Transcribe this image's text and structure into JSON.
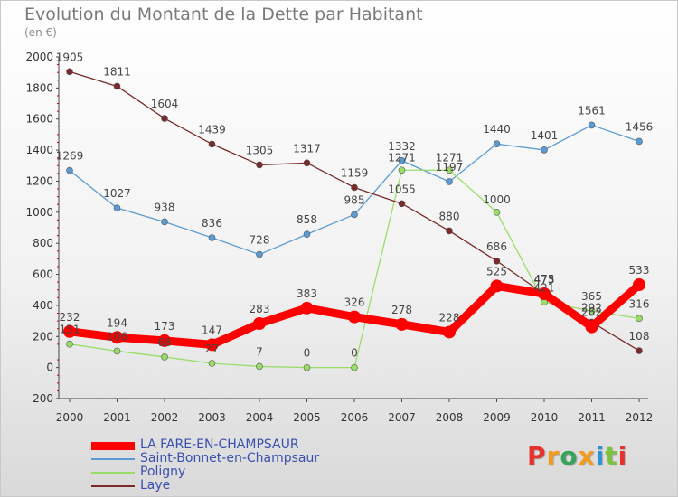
{
  "title": "Evolution du Montant de la Dette par Habitant",
  "unit": "(en €)",
  "logo": {
    "text": "Proxiti",
    "colors": [
      "#e8312f",
      "#f39b1d",
      "#3aa35a",
      "#f39b1d",
      "#2d8fd5",
      "#7cc240",
      "#e8312f"
    ]
  },
  "chart_data": {
    "type": "line",
    "title": "Evolution du Montant de la Dette par Habitant",
    "ylabel": "(en €)",
    "x": [
      "2000",
      "2001",
      "2002",
      "2003",
      "2004",
      "2005",
      "2006",
      "2007",
      "2008",
      "2009",
      "2010",
      "2011",
      "2012"
    ],
    "ylim": [
      -200,
      2000
    ],
    "yticks": [
      -200,
      0,
      200,
      400,
      600,
      800,
      1000,
      1200,
      1400,
      1600,
      1800,
      2000
    ],
    "grid": false,
    "legend": "bottom-left",
    "series": [
      {
        "name": "LA FARE-EN-CHAMPSAUR",
        "color": "#ff0000",
        "width": 9,
        "values": [
          232,
          194,
          173,
          147,
          283,
          383,
          326,
          278,
          228,
          525,
          475,
          262,
          533
        ],
        "labels": [
          "232",
          "194",
          "173",
          "147",
          "283",
          "383",
          "326",
          "278",
          "228",
          "525",
          "475",
          "262",
          "533"
        ]
      },
      {
        "name": "Saint-Bonnet-en-Champsaur",
        "color": "#5b9bd5",
        "width": 1.3,
        "values": [
          1269,
          1027,
          938,
          836,
          728,
          858,
          985,
          1332,
          1197,
          1440,
          1401,
          1561,
          1456
        ],
        "labels": [
          "1269",
          "1027",
          "938",
          "836",
          "728",
          "858",
          "985",
          "1332",
          "1197",
          "1440",
          "1401",
          "1561",
          "1456"
        ]
      },
      {
        "name": "Poligny",
        "color": "#99dd66",
        "width": 1.3,
        "values": [
          151,
          106,
          68,
          27,
          7,
          0,
          0,
          1271,
          1271,
          1000,
          421,
          365,
          316
        ],
        "labels": [
          "151",
          "106",
          "68",
          "27",
          "7",
          "0",
          "0",
          "1271",
          "1271",
          "1000",
          "421",
          "365",
          "316"
        ]
      },
      {
        "name": "Laye",
        "color": "#7a2a2a",
        "width": 1.3,
        "values": [
          1905,
          1811,
          1604,
          1439,
          1305,
          1317,
          1159,
          1055,
          880,
          686,
          473,
          292,
          108
        ],
        "labels": [
          "1905",
          "1811",
          "1604",
          "1439",
          "1305",
          "1317",
          "1159",
          "1055",
          "880",
          "686",
          "473",
          "292",
          "108"
        ]
      }
    ]
  }
}
